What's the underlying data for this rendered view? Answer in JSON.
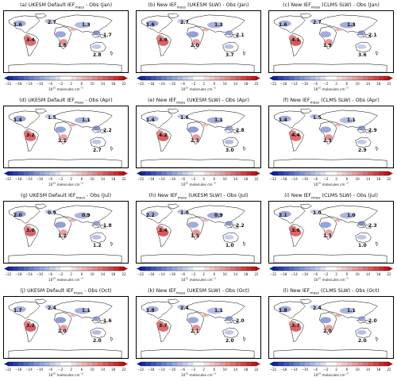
{
  "colorbar": {
    "ticks": [
      "−22",
      "−18",
      "−14",
      "−10",
      "−6",
      "−2",
      "2",
      "6",
      "10",
      "14",
      "18",
      "22"
    ],
    "units_base": "10",
    "units_exp": "15",
    "units_text": "molecules cm",
    "units_exp2": "−2",
    "colors": {
      "neg_end": "#08209c",
      "neg_mid": "#7b93d8",
      "zero": "#ffffff",
      "pos_mid": "#e08a8a",
      "pos_end": "#c40a0a",
      "land": "#ffffff",
      "coast": "#000000"
    }
  },
  "panels": [
    {
      "pre": "(a) UKESM Default IEF",
      "sub": "mass",
      "post": " - Obs (Jan)",
      "labels": [
        "1.6",
        "2.7",
        "1.3",
        "1.7",
        "3.4",
        "1.8",
        "2.8"
      ]
    },
    {
      "pre": "(b) New IEF",
      "sub": "mass",
      "post": " (UKESM SLW) - Obs (Jan)",
      "labels": [
        "1.6",
        "2.7",
        "1.3",
        "2.1",
        "3.9",
        "2.0",
        "3.7"
      ]
    },
    {
      "pre": "(c) New IEF",
      "sub": "mass",
      "post": " (CLMS SLW) - Obs (Jan)",
      "labels": [
        "1.6",
        "2.7",
        "1.3",
        "2.1",
        "4.1",
        "1.9",
        "3.6"
      ]
    },
    {
      "pre": "(d) UKESM Default IEF",
      "sub": "mass",
      "post": " - Obs (Apr)",
      "labels": [
        "1.4",
        "1.5",
        "1.1",
        "2.2",
        "3.2",
        "2.2",
        "2.7"
      ]
    },
    {
      "pre": "(e) New IEF",
      "sub": "mass",
      "post": " (UKESM SLW) - Obs (Apr)",
      "labels": [
        "1.4",
        "1.6",
        "1.1",
        "2.8",
        "4.2",
        "2.3",
        "3.0"
      ]
    },
    {
      "pre": "(f) New IEF",
      "sub": "mass",
      "post": " (CLMS SLW) - Obs (Apr)",
      "labels": [
        "1.4",
        "1.5",
        "1.1",
        "2.9",
        "4.4",
        "2.3",
        "2.9"
      ]
    },
    {
      "pre": "(g) UKESM Default IEF",
      "sub": "mass",
      "post": " - Obs (Jul)",
      "labels": [
        "2.0",
        "0.9",
        "0.9",
        "1.8",
        "3.0",
        "1.2",
        "1.2"
      ]
    },
    {
      "pre": "(h) New IEF",
      "sub": "mass",
      "post": " (UKESM SLW) - Obs (Jul)",
      "labels": [
        "2.2",
        "1.0",
        "0.9",
        "2.2",
        "3.4",
        "1.3",
        "1.0"
      ]
    },
    {
      "pre": "(i) New IEF",
      "sub": "mass",
      "post": " (CLMS SLW) - Obs (Jul)",
      "labels": [
        "2.1",
        "1.0",
        "1.0",
        "2.3",
        "3.6",
        "1.3",
        "1.0"
      ]
    },
    {
      "pre": "(j) UKESM Default IEF",
      "sub": "mass",
      "post": " - Obs (Oct)",
      "labels": [
        "1.7",
        "2.4",
        "1.1",
        "1.6",
        "3.3",
        "2.0",
        "2.0"
      ]
    },
    {
      "pre": "(k) New IEF",
      "sub": "mass",
      "post": " (UKESM SLW) - Obs (Oct)",
      "labels": [
        "1.8",
        "2.4",
        "1.1",
        "2.0",
        "3.7",
        "2.1",
        "2.0"
      ]
    },
    {
      "pre": "(l) New IEF",
      "sub": "mass",
      "post": " (CLMS SLW) - Obs (Oct)",
      "labels": [
        "1.8",
        "2.4",
        "1.1",
        "2.0",
        "3.7",
        "2.0",
        "2.0"
      ]
    }
  ]
}
